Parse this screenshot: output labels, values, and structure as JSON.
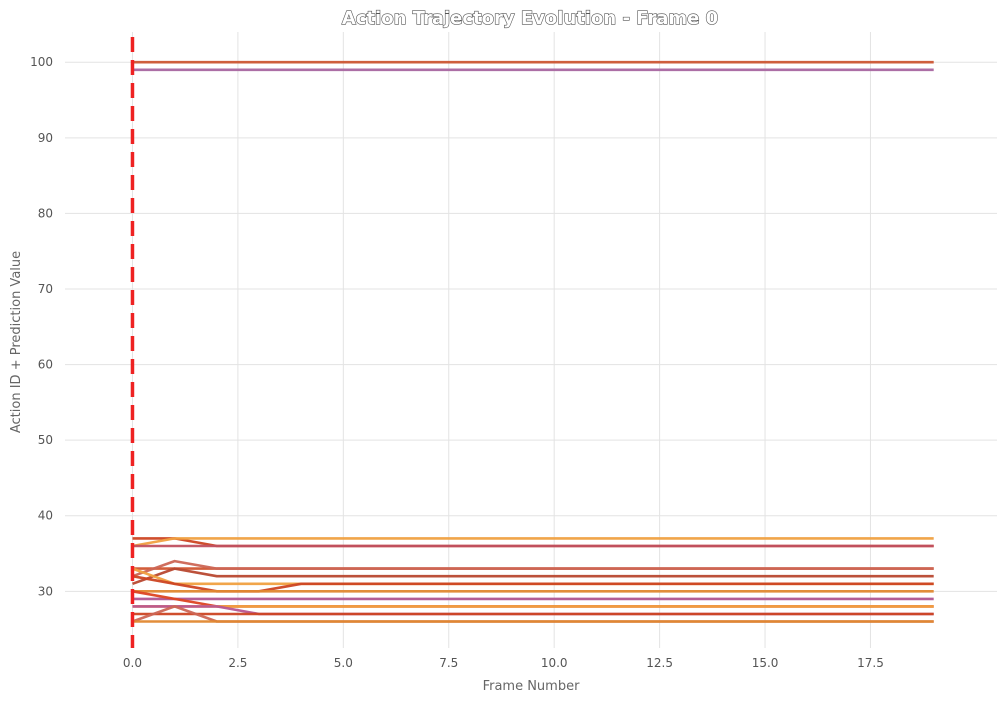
{
  "chart_data": {
    "type": "line",
    "title": "Action Trajectory Evolution - Frame 0",
    "xlabel": "Frame Number",
    "ylabel": "Action ID + Prediction Value",
    "xlim": [
      -1.6,
      20.5
    ],
    "ylim": [
      22.5,
      104
    ],
    "xticks": [
      "0.0",
      "2.5",
      "5.0",
      "7.5",
      "10.0",
      "12.5",
      "15.0",
      "17.5"
    ],
    "yticks": [
      "30",
      "40",
      "50",
      "60",
      "70",
      "80",
      "90",
      "100"
    ],
    "grid": true,
    "legend": "none",
    "marker": {
      "x": 0,
      "style": "dashed",
      "color": "#ee2222"
    },
    "x": [
      0,
      1,
      2,
      3,
      4,
      19
    ],
    "series": [
      {
        "color": "#cc5533",
        "values": [
          100,
          100,
          100,
          100,
          100,
          100
        ]
      },
      {
        "color": "#a866a0",
        "values": [
          99,
          99,
          99,
          99,
          99,
          99
        ]
      },
      {
        "color": "#cc4422",
        "values": [
          37,
          37,
          36,
          36,
          36,
          36
        ]
      },
      {
        "color": "#f0a040",
        "values": [
          36,
          37,
          37,
          37,
          37,
          37
        ]
      },
      {
        "color": "#c05060",
        "values": [
          36,
          36,
          36,
          36,
          36,
          36
        ]
      },
      {
        "color": "#d05530",
        "values": [
          33,
          33,
          33,
          33,
          33,
          33
        ]
      },
      {
        "color": "#cc6655",
        "values": [
          32,
          34,
          33,
          33,
          33,
          33
        ]
      },
      {
        "color": "#b84830",
        "values": [
          31,
          33,
          32,
          32,
          32,
          32
        ]
      },
      {
        "color": "#f0a040",
        "values": [
          33,
          31,
          31,
          31,
          31,
          31
        ]
      },
      {
        "color": "#cc4422",
        "values": [
          32,
          31,
          30,
          30,
          31,
          31
        ]
      },
      {
        "color": "#e08830",
        "values": [
          30,
          30,
          30,
          30,
          30,
          30
        ]
      },
      {
        "color": "#b05590",
        "values": [
          29,
          29,
          29,
          29,
          29,
          29
        ]
      },
      {
        "color": "#dd4422",
        "values": [
          30,
          29,
          28,
          28,
          28,
          28
        ]
      },
      {
        "color": "#f0a040",
        "values": [
          28,
          28,
          28,
          28,
          28,
          28
        ]
      },
      {
        "color": "#b85590",
        "values": [
          28,
          28,
          28,
          27,
          27,
          27
        ]
      },
      {
        "color": "#cc4422",
        "values": [
          27,
          27,
          27,
          27,
          27,
          27
        ]
      },
      {
        "color": "#cc6655",
        "values": [
          26,
          28,
          26,
          26,
          26,
          26
        ]
      },
      {
        "color": "#e08830",
        "values": [
          26,
          26,
          26,
          26,
          26,
          26
        ]
      }
    ]
  }
}
